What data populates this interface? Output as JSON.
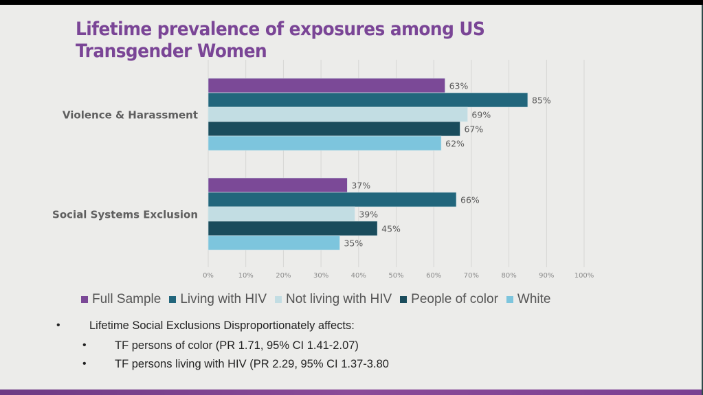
{
  "slide": {
    "title": "Lifetime prevalence of exposures among US Transgender Women",
    "bullets": [
      {
        "level": 1,
        "text": "Lifetime Social Exclusions Disproportionately affects:"
      },
      {
        "level": 2,
        "text": "TF persons of color (PR 1.71, 95% CI 1.41-2.07)"
      },
      {
        "level": 2,
        "text": "TF persons living with HIV (PR 2.29, 95% CI 1.37-3.80"
      }
    ],
    "bullet_glyph": "•"
  },
  "chart_data": {
    "type": "bar",
    "orientation": "horizontal",
    "title": "Lifetime prevalence of exposures among US Transgender Women",
    "xlabel": "",
    "ylabel": "",
    "categories": [
      "Violence & Harassment",
      "Social Systems Exclusion"
    ],
    "series": [
      {
        "name": "Full Sample",
        "color": "#7b4997",
        "values": [
          63,
          37
        ]
      },
      {
        "name": "Living with HIV",
        "color": "#22667c",
        "values": [
          85,
          66
        ]
      },
      {
        "name": "Not living with HIV",
        "color": "#c2dde3",
        "values": [
          69,
          39
        ]
      },
      {
        "name": "People of color",
        "color": "#1a4c5c",
        "values": [
          67,
          45
        ]
      },
      {
        "name": "White",
        "color": "#7dc5dd",
        "values": [
          62,
          35
        ]
      }
    ],
    "value_suffix": "%",
    "xlim": [
      0,
      100
    ],
    "xticks": [
      "0%",
      "10%",
      "20%",
      "30%",
      "40%",
      "50%",
      "60%",
      "70%",
      "80%",
      "90%",
      "100%"
    ],
    "grid": true,
    "legend_position": "bottom"
  }
}
